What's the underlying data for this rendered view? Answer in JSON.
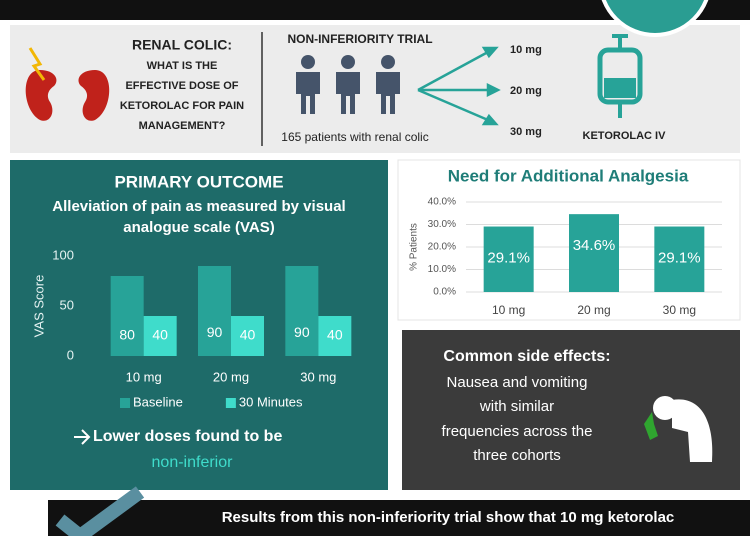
{
  "header": {
    "title": "RENAL COLIC:",
    "question": [
      "WHAT IS THE",
      "EFFECTIVE DOSE OF",
      "KETOROLAC FOR PAIN",
      "MANAGEMENT?"
    ]
  },
  "trial": {
    "title": "NON-INFERIORITY TRIAL",
    "patients": "165 patients with renal colic",
    "arms": [
      "10 mg",
      "20 mg",
      "30 mg"
    ],
    "drug": "KETOROLAC IV"
  },
  "chart_data": [
    {
      "type": "bar",
      "title": "PRIMARY OUTCOME",
      "subtitle": [
        "Alleviation of pain as measured by visual",
        "analogue scale (VAS)"
      ],
      "y_label": "VAS Score",
      "categories": [
        "10 mg",
        "20 mg",
        "30 mg"
      ],
      "series": [
        {
          "name": "Baseline",
          "color": "#27a398",
          "values": [
            80,
            90,
            90
          ]
        },
        {
          "name": "30 Minutes",
          "color": "#3fdccb",
          "values": [
            40,
            40,
            40
          ]
        }
      ],
      "ylim": [
        0,
        100
      ],
      "yticks": [
        0,
        50,
        100
      ],
      "grid": false,
      "legend": "bottom"
    },
    {
      "type": "bar",
      "title": "Need for Additional Analgesia",
      "y_label": "% Patients",
      "categories": [
        "10 mg",
        "20 mg",
        "30 mg"
      ],
      "values": [
        29.1,
        34.6,
        29.1
      ],
      "value_labels": [
        "29.1%",
        "34.6%",
        "29.1%"
      ],
      "color": "#27a398",
      "ylim": [
        0,
        40
      ],
      "yticks": [
        {
          "value": 0,
          "label": "0.0%"
        },
        {
          "value": 10,
          "label": "10.0%"
        },
        {
          "value": 20,
          "label": "20.0%"
        },
        {
          "value": 30,
          "label": "30.0%"
        },
        {
          "value": 40,
          "label": "40.0%"
        }
      ],
      "grid": true
    }
  ],
  "conclusion": {
    "text": "Lower doses found to be",
    "highlight": "non-inferior"
  },
  "side_effects": {
    "title": "Common side effects:",
    "lines": [
      "Nausea and vomiting",
      "with similar",
      "frequencies across the",
      "three cohorts"
    ]
  },
  "footer": {
    "text": "Results from this non-inferiority trial show that 10 mg ketorolac"
  }
}
